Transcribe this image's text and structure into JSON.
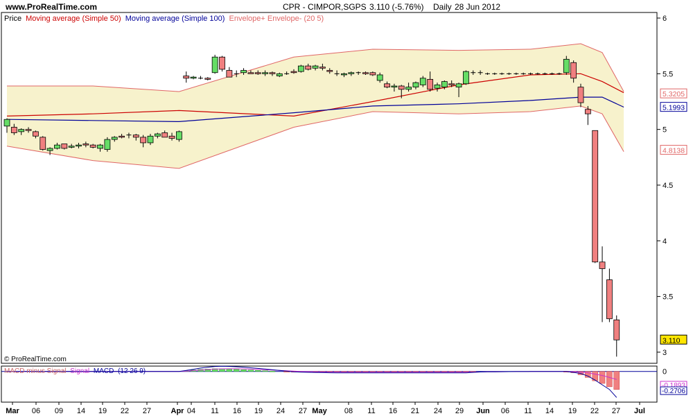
{
  "header": {
    "site": "www.ProRealTime.com",
    "instrument": "CPR - CIMPOR,SGPS",
    "last_change": "3.110 (-5.76%)",
    "period": "Daily",
    "date": "28 Jun 2012"
  },
  "legend": {
    "price": "Price",
    "ma50": "Moving average (Simple 50)",
    "ma100": "Moving average (Simple 100)",
    "envelope": "Envelope+ Envelope- (20 5)"
  },
  "watermark": "© ProRealTime.com",
  "macd_legend": {
    "part1": "MACD minus Signal",
    "part2": "Signal",
    "part3": "MACD",
    "params": "(12 26 9)"
  },
  "colors": {
    "up": "#66dd66",
    "down": "#f08080",
    "ma50": "#cc0000",
    "ma100": "#000099",
    "envelope_fill": "#f7f2cc",
    "envelope_line": "#e06666",
    "last_price_bg": "#ffe600"
  },
  "chart_data": {
    "type": "candlestick",
    "xlabels": [
      "Mar",
      "06",
      "09",
      "14",
      "19",
      "22",
      "27",
      "Apr",
      "04",
      "11",
      "16",
      "19",
      "24",
      "27",
      "May",
      "08",
      "11",
      "16",
      "21",
      "24",
      "29",
      "Jun",
      "06",
      "11",
      "14",
      "19",
      "22",
      "27",
      "Jul"
    ],
    "ylim": [
      2.9,
      6.05
    ],
    "yticks": [
      "6",
      "5.5",
      "5",
      "4.5",
      "4",
      "3.5",
      "3"
    ],
    "price_labels": {
      "ma50": "5.3205",
      "ma100": "5.1993",
      "envelope_lower": "4.8138",
      "last": "3.110"
    },
    "ohlc": [
      [
        5.03,
        5.1,
        4.97,
        5.09
      ],
      [
        5.02,
        5.05,
        4.95,
        4.97
      ],
      [
        4.98,
        5.01,
        4.95,
        5.0
      ],
      [
        5.0,
        5.02,
        4.97,
        4.99
      ],
      [
        4.98,
        4.99,
        4.92,
        4.94
      ],
      [
        4.93,
        4.94,
        4.81,
        4.82
      ],
      [
        4.81,
        4.84,
        4.77,
        4.83
      ],
      [
        4.83,
        4.88,
        4.82,
        4.86
      ],
      [
        4.87,
        4.87,
        4.82,
        4.83
      ],
      [
        4.84,
        4.87,
        4.83,
        4.85
      ],
      [
        4.85,
        4.88,
        4.83,
        4.86
      ],
      [
        4.87,
        4.89,
        4.84,
        4.86
      ],
      [
        4.86,
        4.87,
        4.83,
        4.84
      ],
      [
        4.83,
        4.87,
        4.8,
        4.86
      ],
      [
        4.82,
        4.93,
        4.8,
        4.91
      ],
      [
        4.91,
        4.94,
        4.89,
        4.93
      ],
      [
        4.94,
        4.96,
        4.92,
        4.93
      ],
      [
        4.95,
        4.97,
        4.92,
        4.95
      ],
      [
        4.95,
        4.96,
        4.9,
        4.93
      ],
      [
        4.93,
        4.95,
        4.84,
        4.88
      ],
      [
        4.88,
        4.96,
        4.86,
        4.94
      ],
      [
        4.94,
        4.97,
        4.92,
        4.96
      ],
      [
        4.97,
        4.99,
        4.93,
        4.93
      ],
      [
        4.94,
        4.97,
        4.9,
        4.92
      ],
      [
        4.91,
        4.99,
        4.89,
        4.98
      ],
      [
        5.48,
        5.52,
        5.42,
        5.46
      ],
      [
        5.46,
        5.48,
        5.45,
        5.47
      ],
      [
        5.46,
        5.48,
        5.45,
        5.46
      ],
      [
        5.46,
        5.47,
        5.44,
        5.45
      ],
      [
        5.51,
        5.67,
        5.5,
        5.65
      ],
      [
        5.65,
        5.66,
        5.52,
        5.54
      ],
      [
        5.53,
        5.56,
        5.47,
        5.47
      ],
      [
        5.5,
        5.53,
        5.47,
        5.5
      ],
      [
        5.51,
        5.55,
        5.49,
        5.53
      ],
      [
        5.51,
        5.53,
        5.5,
        5.5
      ],
      [
        5.51,
        5.53,
        5.49,
        5.5
      ],
      [
        5.5,
        5.53,
        5.48,
        5.51
      ],
      [
        5.51,
        5.52,
        5.48,
        5.5
      ],
      [
        5.48,
        5.51,
        5.47,
        5.5
      ],
      [
        5.5,
        5.52,
        5.49,
        5.5
      ],
      [
        5.52,
        5.54,
        5.5,
        5.51
      ],
      [
        5.52,
        5.58,
        5.51,
        5.57
      ],
      [
        5.57,
        5.59,
        5.53,
        5.54
      ],
      [
        5.55,
        5.58,
        5.53,
        5.57
      ],
      [
        5.56,
        5.59,
        5.53,
        5.55
      ],
      [
        5.53,
        5.55,
        5.5,
        5.52
      ],
      [
        5.5,
        5.53,
        5.48,
        5.5
      ],
      [
        5.49,
        5.51,
        5.47,
        5.5
      ],
      [
        5.5,
        5.52,
        5.48,
        5.51
      ],
      [
        5.51,
        5.52,
        5.49,
        5.51
      ],
      [
        5.51,
        5.52,
        5.49,
        5.5
      ],
      [
        5.51,
        5.52,
        5.48,
        5.49
      ],
      [
        5.44,
        5.51,
        5.42,
        5.49
      ],
      [
        5.41,
        5.43,
        5.37,
        5.38
      ],
      [
        5.38,
        5.41,
        5.34,
        5.39
      ],
      [
        5.39,
        5.4,
        5.28,
        5.36
      ],
      [
        5.36,
        5.42,
        5.34,
        5.38
      ],
      [
        5.38,
        5.43,
        5.36,
        5.42
      ],
      [
        5.4,
        5.48,
        5.38,
        5.46
      ],
      [
        5.45,
        5.52,
        5.34,
        5.36
      ],
      [
        5.37,
        5.42,
        5.34,
        5.4
      ],
      [
        5.38,
        5.44,
        5.36,
        5.43
      ],
      [
        5.41,
        5.44,
        5.38,
        5.4
      ],
      [
        5.38,
        5.42,
        5.29,
        5.41
      ],
      [
        5.41,
        5.53,
        5.4,
        5.52
      ],
      [
        5.51,
        5.53,
        5.49,
        5.51
      ],
      [
        5.51,
        5.53,
        5.49,
        5.51
      ],
      [
        5.5,
        5.51,
        5.49,
        5.5
      ],
      [
        5.5,
        5.51,
        5.49,
        5.5
      ],
      [
        5.5,
        5.51,
        5.49,
        5.5
      ],
      [
        5.5,
        5.51,
        5.49,
        5.5
      ],
      [
        5.5,
        5.51,
        5.49,
        5.5
      ],
      [
        5.5,
        5.51,
        5.49,
        5.5
      ],
      [
        5.5,
        5.51,
        5.49,
        5.5
      ],
      [
        5.5,
        5.51,
        5.49,
        5.5
      ],
      [
        5.5,
        5.51,
        5.49,
        5.5
      ],
      [
        5.5,
        5.51,
        5.49,
        5.5
      ],
      [
        5.5,
        5.51,
        5.49,
        5.5
      ],
      [
        5.51,
        5.66,
        5.49,
        5.63
      ],
      [
        5.6,
        5.62,
        5.42,
        5.46
      ],
      [
        5.38,
        5.41,
        5.2,
        5.24
      ],
      [
        5.18,
        5.21,
        5.04,
        5.14
      ],
      [
        4.99,
        4.99,
        3.8,
        3.81
      ],
      [
        3.81,
        3.95,
        3.27,
        3.75
      ],
      [
        3.65,
        3.75,
        3.27,
        3.3
      ],
      [
        3.29,
        3.33,
        2.96,
        3.11
      ]
    ],
    "ma50": [
      [
        0,
        5.12
      ],
      [
        12,
        5.14
      ],
      [
        24,
        5.17
      ],
      [
        40,
        5.12
      ],
      [
        51,
        5.25
      ],
      [
        63,
        5.4
      ],
      [
        73,
        5.49
      ],
      [
        80,
        5.5
      ],
      [
        83,
        5.43
      ],
      [
        86,
        5.33
      ]
    ],
    "ma100": [
      [
        0,
        5.09
      ],
      [
        12,
        5.08
      ],
      [
        24,
        5.07
      ],
      [
        40,
        5.15
      ],
      [
        51,
        5.21
      ],
      [
        63,
        5.23
      ],
      [
        73,
        5.26
      ],
      [
        80,
        5.29
      ],
      [
        83,
        5.29
      ],
      [
        86,
        5.2
      ]
    ],
    "envelope_upper": [
      [
        0,
        5.39
      ],
      [
        12,
        5.39
      ],
      [
        24,
        5.34
      ],
      [
        40,
        5.65
      ],
      [
        51,
        5.72
      ],
      [
        63,
        5.71
      ],
      [
        73,
        5.72
      ],
      [
        80,
        5.77
      ],
      [
        83,
        5.69
      ],
      [
        86,
        5.34
      ]
    ],
    "envelope_lower": [
      [
        0,
        4.85
      ],
      [
        12,
        4.72
      ],
      [
        24,
        4.65
      ],
      [
        40,
        5.02
      ],
      [
        51,
        5.16
      ],
      [
        63,
        5.14
      ],
      [
        73,
        5.16
      ],
      [
        80,
        5.21
      ],
      [
        83,
        5.14
      ],
      [
        86,
        4.8
      ]
    ],
    "macd": {
      "ylim": [
        -0.46,
        0.08
      ],
      "yticks": [
        "0"
      ],
      "value_labels": [
        "-0.1893",
        "-0.2706"
      ],
      "histogram": [
        0,
        0,
        0,
        0,
        0,
        0,
        0,
        0,
        0,
        0,
        0,
        0,
        0,
        0,
        0,
        0,
        0,
        0,
        0,
        0,
        0,
        0,
        0,
        0,
        0,
        0.01,
        0.02,
        0.03,
        0.035,
        0.04,
        0.04,
        0.035,
        0.03,
        0.025,
        0.02,
        0.015,
        0.01,
        0.005,
        0,
        -0.005,
        -0.01,
        -0.01,
        -0.01,
        -0.01,
        -0.01,
        -0.01,
        -0.01,
        -0.01,
        -0.01,
        -0.01,
        -0.01,
        -0.01,
        -0.01,
        -0.01,
        -0.01,
        -0.01,
        -0.01,
        -0.01,
        -0.01,
        -0.01,
        -0.01,
        -0.01,
        -0.01,
        -0.01,
        -0.01,
        -0.005,
        0,
        0,
        0,
        0,
        0,
        0,
        0,
        0,
        0,
        0,
        0,
        0,
        -0.01,
        -0.02,
        -0.05,
        -0.09,
        -0.14,
        -0.18,
        -0.23,
        -0.27
      ],
      "signal": [
        0,
        0,
        0,
        0,
        0,
        0,
        0,
        0,
        0,
        0,
        0,
        0,
        0,
        0,
        0,
        0,
        0,
        0,
        0,
        0,
        0,
        0,
        0,
        0,
        0,
        0.005,
        0.012,
        0.02,
        0.028,
        0.034,
        0.038,
        0.04,
        0.04,
        0.038,
        0.034,
        0.03,
        0.025,
        0.02,
        0.015,
        0.01,
        0.005,
        0,
        -0.003,
        -0.006,
        -0.008,
        -0.01,
        -0.011,
        -0.012,
        -0.012,
        -0.012,
        -0.012,
        -0.012,
        -0.012,
        -0.012,
        -0.012,
        -0.012,
        -0.012,
        -0.012,
        -0.012,
        -0.012,
        -0.012,
        -0.012,
        -0.012,
        -0.012,
        -0.012,
        -0.01,
        -0.008,
        -0.006,
        -0.005,
        -0.004,
        -0.003,
        -0.002,
        -0.002,
        -0.001,
        -0.001,
        0,
        0,
        0,
        0,
        -0.004,
        -0.01,
        -0.02,
        -0.04,
        -0.06,
        -0.09,
        -0.12
      ],
      "macd_line": [
        0,
        0,
        0,
        0,
        0,
        0,
        0,
        0,
        0,
        0,
        0,
        0,
        0,
        0,
        0,
        0,
        0,
        0,
        0,
        0,
        0,
        0,
        0,
        0,
        0,
        0.015,
        0.032,
        0.05,
        0.063,
        0.074,
        0.078,
        0.075,
        0.07,
        0.063,
        0.054,
        0.045,
        0.035,
        0.025,
        0.015,
        0.005,
        -0.005,
        -0.01,
        -0.013,
        -0.016,
        -0.018,
        -0.02,
        -0.021,
        -0.022,
        -0.022,
        -0.022,
        -0.022,
        -0.022,
        -0.022,
        -0.022,
        -0.022,
        -0.022,
        -0.022,
        -0.022,
        -0.022,
        -0.022,
        -0.022,
        -0.022,
        -0.022,
        -0.022,
        -0.022,
        -0.015,
        -0.008,
        -0.006,
        -0.005,
        -0.004,
        -0.003,
        -0.002,
        -0.002,
        -0.001,
        -0.001,
        0,
        0,
        0,
        0,
        -0.014,
        -0.03,
        -0.07,
        -0.13,
        -0.2,
        -0.27,
        -0.39
      ]
    }
  }
}
